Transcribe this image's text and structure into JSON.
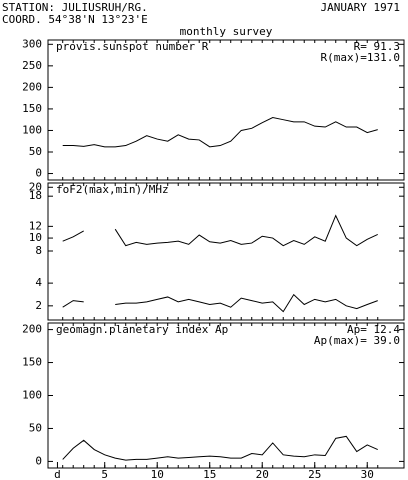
{
  "header": {
    "station": "STATION: JULIUSRUH/RG.",
    "date": "JANUARY 1971",
    "coord": "COORD. 54°38'N 13°23'E",
    "subtitle": "monthly survey"
  },
  "chart_data": [
    {
      "type": "line",
      "title": "provis.sunspot number R",
      "annotations": [
        "R= 91.3",
        "R(max)=131.0"
      ],
      "x": [
        1,
        2,
        3,
        4,
        5,
        6,
        7,
        8,
        9,
        10,
        11,
        12,
        13,
        14,
        15,
        16,
        17,
        18,
        19,
        20,
        21,
        22,
        23,
        24,
        25,
        26,
        27,
        28,
        29,
        30,
        31
      ],
      "series": [
        {
          "color": "#000000",
          "values": [
            65,
            65,
            63,
            67,
            62,
            62,
            65,
            75,
            88,
            80,
            75,
            90,
            80,
            78,
            62,
            65,
            75,
            100,
            105,
            118,
            130,
            125,
            120,
            120,
            110,
            108,
            120,
            108,
            108,
            95,
            102
          ]
        }
      ],
      "xlim": [
        -0.4,
        33.5
      ],
      "ylim": [
        -15,
        310
      ],
      "yticks": [
        0,
        50,
        100,
        150,
        200,
        250,
        300
      ]
    },
    {
      "type": "line",
      "title": "foF2(max,min)/MHz",
      "yscale": "sqrt",
      "x": [
        1,
        2,
        3,
        4,
        5,
        6,
        7,
        8,
        9,
        10,
        11,
        12,
        13,
        14,
        15,
        16,
        17,
        18,
        19,
        20,
        21,
        22,
        23,
        24,
        25,
        26,
        27,
        28,
        29,
        30,
        31
      ],
      "series": [
        {
          "color": "#000000",
          "values": [
            9.5,
            10.2,
            11.2,
            null,
            null,
            11.5,
            8.8,
            9.3,
            9,
            9.2,
            9.3,
            9.5,
            9,
            10.5,
            9.4,
            9.2,
            9.6,
            9,
            9.2,
            10.3,
            10,
            8.8,
            9.6,
            9,
            10.2,
            9.5,
            14,
            10,
            8.8,
            9.8,
            10.6
          ]
        },
        {
          "color": "#000000",
          "values": [
            1.9,
            2.4,
            2.3,
            null,
            null,
            2.1,
            2.2,
            2.2,
            2.3,
            2.5,
            2.7,
            2.3,
            2.5,
            2.3,
            2.1,
            2.2,
            1.9,
            2.6,
            2.4,
            2.2,
            2.3,
            1.6,
            2.9,
            2.1,
            2.5,
            2.3,
            2.5,
            2,
            1.8,
            2.1,
            2.4
          ]
        }
      ],
      "xlim": [
        -0.4,
        33.5
      ],
      "ylim": [
        1.1,
        21
      ],
      "yticks": [
        2,
        4,
        8,
        10,
        12,
        18,
        20
      ]
    },
    {
      "type": "line",
      "title": "geomagn.planetary index Ap",
      "annotations": [
        "Ap= 12.4",
        "Ap(max)= 39.0"
      ],
      "x": [
        1,
        2,
        3,
        4,
        5,
        6,
        7,
        8,
        9,
        10,
        11,
        12,
        13,
        14,
        15,
        16,
        17,
        18,
        19,
        20,
        21,
        22,
        23,
        24,
        25,
        26,
        27,
        28,
        29,
        30,
        31
      ],
      "series": [
        {
          "color": "#000000",
          "values": [
            3,
            20,
            32,
            18,
            10,
            5,
            2,
            3,
            3,
            5,
            7,
            5,
            6,
            7,
            8,
            7,
            5,
            5,
            12,
            10,
            28,
            10,
            8,
            7,
            10,
            9,
            35,
            38,
            15,
            25,
            18
          ]
        }
      ],
      "xlim": [
        -0.4,
        33.5
      ],
      "ylim": [
        -10,
        210
      ],
      "yticks": [
        0,
        50,
        100,
        150,
        200
      ],
      "xticks": [
        {
          "value": 0.5,
          "label": "d"
        },
        5,
        10,
        15,
        20,
        25,
        30
      ]
    }
  ]
}
